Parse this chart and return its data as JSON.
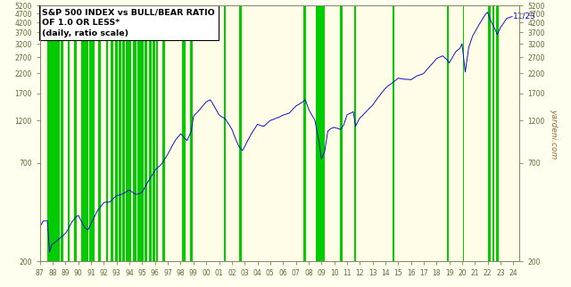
{
  "title_line1": "S&P 500 INDEX vs BULL/BEAR RATIO",
  "title_line2": "OF 1.0 OR LESS*",
  "title_line3": "(daily, ratio scale)",
  "ylabel_right": "yardeni.com",
  "annotation": "11/23",
  "annotation_value": 4550,
  "bg_color": "#FFFFF0",
  "plot_bg_color": "#FFFDE7",
  "green_band_color": "#00CC00",
  "line_color": "#0000CC",
  "yticks": [
    200,
    700,
    1200,
    1700,
    2200,
    2700,
    3200,
    3700,
    4200,
    4700,
    5200
  ],
  "xmin": 1987.0,
  "xmax": 2024.5,
  "ymin": 200,
  "ymax": 5200,
  "xtick_positions": [
    1987,
    1988,
    1989,
    1990,
    1991,
    1992,
    1993,
    1994,
    1995,
    1996,
    1997,
    1998,
    1999,
    2000,
    2001,
    2002,
    2003,
    2004,
    2005,
    2006,
    2007,
    2008,
    2009,
    2010,
    2011,
    2012,
    2013,
    2014,
    2015,
    2016,
    2017,
    2018,
    2019,
    2020,
    2021,
    2022,
    2023,
    2024
  ],
  "green_bands": [
    [
      1987.6,
      1987.83
    ],
    [
      1987.88,
      1988.0
    ],
    [
      1988.0,
      1988.25
    ],
    [
      1988.3,
      1988.55
    ],
    [
      1988.65,
      1988.85
    ],
    [
      1989.15,
      1989.35
    ],
    [
      1989.65,
      1989.85
    ],
    [
      1990.25,
      1990.75
    ],
    [
      1990.85,
      1991.3
    ],
    [
      1991.55,
      1991.75
    ],
    [
      1992.15,
      1992.35
    ],
    [
      1992.55,
      1992.75
    ],
    [
      1992.85,
      1993.05
    ],
    [
      1993.15,
      1993.35
    ],
    [
      1993.45,
      1993.65
    ],
    [
      1993.7,
      1993.9
    ],
    [
      1993.95,
      1994.15
    ],
    [
      1994.25,
      1994.55
    ],
    [
      1994.6,
      1994.8
    ],
    [
      1994.85,
      1995.1
    ],
    [
      1995.2,
      1995.4
    ],
    [
      1995.5,
      1995.75
    ],
    [
      1995.8,
      1996.0
    ],
    [
      1996.05,
      1996.2
    ],
    [
      1996.6,
      1996.75
    ],
    [
      1998.1,
      1998.35
    ],
    [
      1998.7,
      1998.95
    ],
    [
      2001.4,
      2001.55
    ],
    [
      2002.55,
      2002.75
    ],
    [
      2007.6,
      2007.8
    ],
    [
      2008.6,
      2009.3
    ],
    [
      2010.45,
      2010.65
    ],
    [
      2011.55,
      2011.7
    ],
    [
      2014.55,
      2014.7
    ],
    [
      2018.85,
      2018.95
    ],
    [
      2020.05,
      2020.15
    ],
    [
      2022.0,
      2022.25
    ],
    [
      2022.35,
      2022.55
    ],
    [
      2022.65,
      2022.9
    ]
  ],
  "sp500_anchors": [
    [
      1987.0,
      310
    ],
    [
      1987.25,
      335
    ],
    [
      1987.58,
      336
    ],
    [
      1987.75,
      225
    ],
    [
      1987.92,
      247
    ],
    [
      1988.5,
      265
    ],
    [
      1989.0,
      285
    ],
    [
      1989.5,
      330
    ],
    [
      1989.83,
      355
    ],
    [
      1990.0,
      360
    ],
    [
      1990.5,
      305
    ],
    [
      1990.75,
      295
    ],
    [
      1991.0,
      320
    ],
    [
      1991.5,
      375
    ],
    [
      1992.0,
      415
    ],
    [
      1992.5,
      420
    ],
    [
      1993.0,
      450
    ],
    [
      1993.5,
      460
    ],
    [
      1994.0,
      480
    ],
    [
      1994.5,
      455
    ],
    [
      1994.83,
      460
    ],
    [
      1995.0,
      470
    ],
    [
      1995.5,
      545
    ],
    [
      1996.0,
      620
    ],
    [
      1996.5,
      670
    ],
    [
      1997.0,
      760
    ],
    [
      1997.5,
      885
    ],
    [
      1998.0,
      980
    ],
    [
      1998.5,
      900
    ],
    [
      1998.83,
      1020
    ],
    [
      1999.0,
      1230
    ],
    [
      1999.5,
      1350
    ],
    [
      2000.0,
      1480
    ],
    [
      2000.3,
      1520
    ],
    [
      2000.5,
      1450
    ],
    [
      2001.0,
      1250
    ],
    [
      2001.5,
      1180
    ],
    [
      2002.0,
      1050
    ],
    [
      2002.5,
      850
    ],
    [
      2002.83,
      800
    ],
    [
      2003.0,
      840
    ],
    [
      2003.5,
      990
    ],
    [
      2004.0,
      1130
    ],
    [
      2004.5,
      1105
    ],
    [
      2005.0,
      1190
    ],
    [
      2005.5,
      1225
    ],
    [
      2006.0,
      1280
    ],
    [
      2006.5,
      1310
    ],
    [
      2007.0,
      1430
    ],
    [
      2007.5,
      1500
    ],
    [
      2007.75,
      1550
    ],
    [
      2008.0,
      1380
    ],
    [
      2008.5,
      1200
    ],
    [
      2008.83,
      900
    ],
    [
      2009.0,
      735
    ],
    [
      2009.25,
      800
    ],
    [
      2009.5,
      1050
    ],
    [
      2009.83,
      1100
    ],
    [
      2010.0,
      1115
    ],
    [
      2010.5,
      1080
    ],
    [
      2010.75,
      1140
    ],
    [
      2011.0,
      1300
    ],
    [
      2011.5,
      1350
    ],
    [
      2011.67,
      1120
    ],
    [
      2012.0,
      1250
    ],
    [
      2012.5,
      1360
    ],
    [
      2013.0,
      1480
    ],
    [
      2013.5,
      1660
    ],
    [
      2014.0,
      1850
    ],
    [
      2014.5,
      1960
    ],
    [
      2015.0,
      2100
    ],
    [
      2015.5,
      2070
    ],
    [
      2016.0,
      2050
    ],
    [
      2016.5,
      2170
    ],
    [
      2017.0,
      2240
    ],
    [
      2017.5,
      2450
    ],
    [
      2018.0,
      2680
    ],
    [
      2018.5,
      2780
    ],
    [
      2018.83,
      2650
    ],
    [
      2019.0,
      2550
    ],
    [
      2019.5,
      2920
    ],
    [
      2019.83,
      3050
    ],
    [
      2020.0,
      3230
    ],
    [
      2020.25,
      2250
    ],
    [
      2020.5,
      3050
    ],
    [
      2020.83,
      3560
    ],
    [
      2021.0,
      3720
    ],
    [
      2021.5,
      4300
    ],
    [
      2021.83,
      4700
    ],
    [
      2022.0,
      4800
    ],
    [
      2022.25,
      4300
    ],
    [
      2022.5,
      3950
    ],
    [
      2022.75,
      3600
    ],
    [
      2022.92,
      3830
    ],
    [
      2023.0,
      3950
    ],
    [
      2023.5,
      4450
    ],
    [
      2023.92,
      4550
    ]
  ]
}
